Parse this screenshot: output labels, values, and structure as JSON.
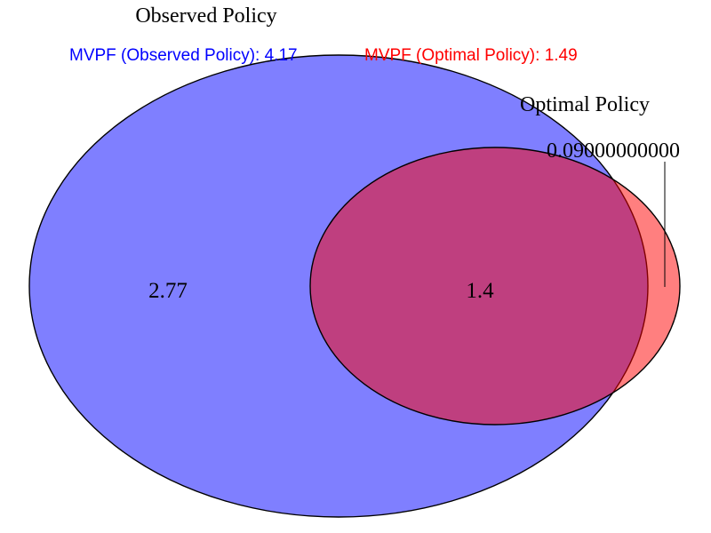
{
  "sets": {
    "observed": {
      "label": "Observed Policy",
      "color": "#0000ff"
    },
    "optimal": {
      "label": "Optimal Policy",
      "color": "#ff0000"
    }
  },
  "mvpf": {
    "observed": {
      "text": "MVPF (Observed Policy): 4.17",
      "color": "#0000ff"
    },
    "optimal": {
      "text": "MVPF (Optimal Policy): 1.49",
      "color": "#ff0000"
    }
  },
  "regions": {
    "observed_only": "2.77",
    "intersection": "1.4",
    "optimal_only": "0.09000000000"
  }
}
